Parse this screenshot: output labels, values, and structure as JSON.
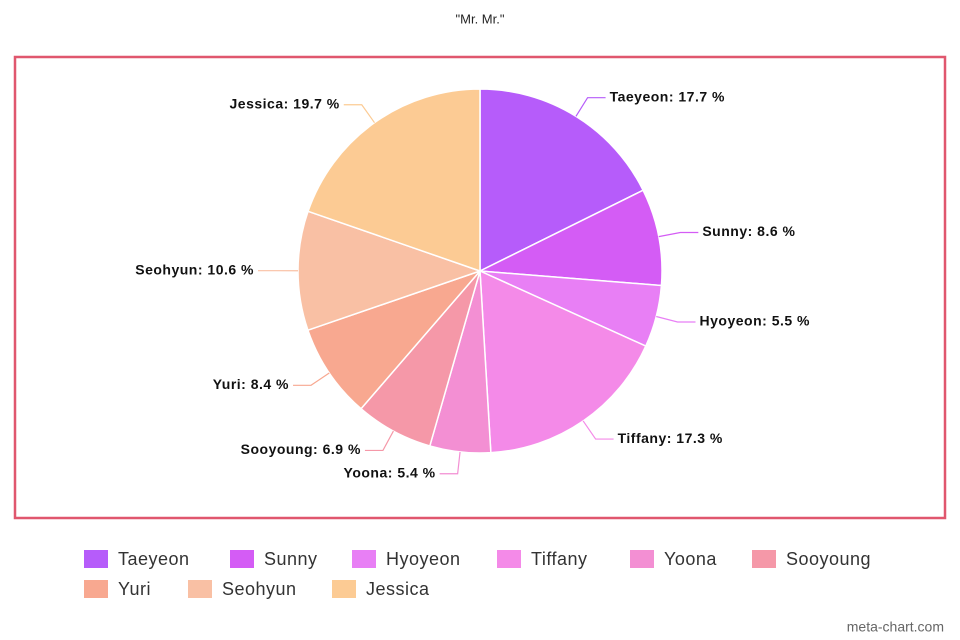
{
  "chart_data": {
    "type": "pie",
    "title": "\"Mr. Mr.\"",
    "categories": [
      "Taeyeon",
      "Sunny",
      "Hyoyeon",
      "Tiffany",
      "Yoona",
      "Sooyoung",
      "Yuri",
      "Seohyun",
      "Jessica"
    ],
    "values": [
      17.7,
      8.6,
      5.5,
      17.3,
      5.4,
      6.9,
      8.4,
      10.6,
      19.7
    ],
    "value_labels": [
      "Taeyeon: 17.7 %",
      "Sunny: 8.6 %",
      "Hyoyeon: 5.5 %",
      "Tiffany: 17.3 %",
      "Yoona: 5.4 %",
      "Sooyoung: 6.9 %",
      "Yuri: 8.4 %",
      "Seohyun: 10.6 %",
      "Jessica: 19.7 %"
    ],
    "colors": [
      "#b65cfa",
      "#d45cf5",
      "#e87ff5",
      "#f48ae8",
      "#f38fd3",
      "#f598a8",
      "#f8a890",
      "#f9c0a4",
      "#fccb94"
    ],
    "credit": "meta-chart.com"
  }
}
